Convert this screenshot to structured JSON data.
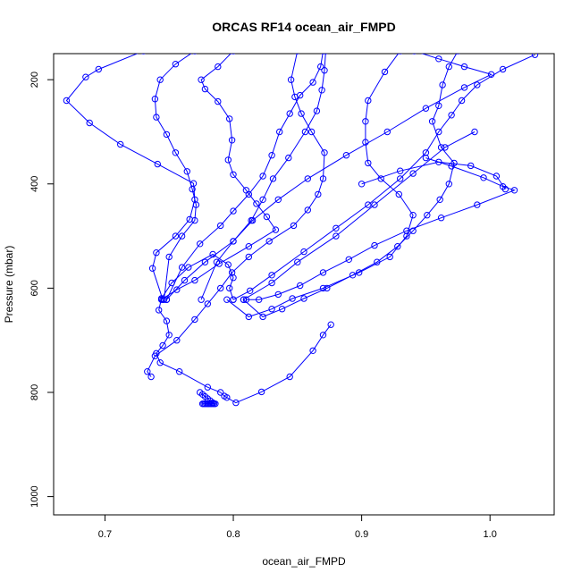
{
  "chart_data": {
    "type": "line",
    "title": "ORCAS RF14 ocean_air_FMPD",
    "xlabel": "ocean_air_FMPD",
    "ylabel": "Pressure (mbar)",
    "xlim": [
      0.66,
      1.05
    ],
    "ylim": [
      1035,
      150
    ],
    "xticks": [
      0.7,
      0.8,
      0.9,
      1.0
    ],
    "xtick_labels": [
      "0.7",
      "0.8",
      "0.9",
      "1.0"
    ],
    "yticks": [
      200,
      400,
      600,
      800,
      1000
    ],
    "ytick_labels": [
      "200",
      "400",
      "600",
      "800",
      "1000"
    ],
    "grid": false,
    "color": "#0000ff",
    "series": [
      {
        "x": [
          0.73,
          0.695,
          0.685,
          0.67,
          0.688,
          0.712,
          0.741,
          0.769,
          0.77,
          0.766,
          0.755,
          0.74,
          0.737,
          0.745
        ],
        "y": [
          145,
          180,
          195,
          240,
          283,
          324,
          362,
          399,
          430,
          468,
          500,
          532,
          562,
          622
        ]
      },
      {
        "x": [
          0.77,
          0.755,
          0.743,
          0.739,
          0.74,
          0.748,
          0.755,
          0.764,
          0.768,
          0.771,
          0.77,
          0.76,
          0.75,
          0.746
        ],
        "y": [
          145,
          170,
          200,
          237,
          272,
          305,
          340,
          376,
          410,
          440,
          470,
          500,
          540,
          622
        ]
      },
      {
        "x": [
          0.8,
          0.788,
          0.775,
          0.778,
          0.788,
          0.797,
          0.799,
          0.796,
          0.8,
          0.81,
          0.818,
          0.826,
          0.833,
          0.812,
          0.789,
          0.77,
          0.756,
          0.744
        ],
        "y": [
          145,
          175,
          200,
          218,
          242,
          275,
          316,
          354,
          382,
          412,
          438,
          463,
          488,
          520,
          553,
          585,
          603,
          622
        ]
      },
      {
        "x": [
          0.8,
          0.797,
          0.8,
          0.796,
          0.784,
          0.765,
          0.752,
          0.744,
          0.742,
          0.748,
          0.75,
          0.745,
          0.74,
          0.743,
          0.758,
          0.78,
          0.79,
          0.793,
          0.795,
          0.802,
          0.822,
          0.844,
          0.862,
          0.87,
          0.876
        ],
        "y": [
          622,
          600,
          580,
          555,
          535,
          560,
          590,
          620,
          642,
          663,
          690,
          710,
          725,
          743,
          760,
          790,
          800,
          807,
          810,
          820,
          799,
          770,
          720,
          690,
          670
        ]
      },
      {
        "x": [
          0.776,
          0.777,
          0.778,
          0.779,
          0.78,
          0.781,
          0.782,
          0.783,
          0.784,
          0.785,
          0.786,
          0.784,
          0.782,
          0.78,
          0.778,
          0.776,
          0.774
        ],
        "y": [
          822,
          822,
          822,
          822,
          822,
          822,
          822,
          822,
          822,
          822,
          822,
          820,
          816,
          812,
          808,
          804,
          800
        ]
      },
      {
        "x": [
          0.872,
          0.871,
          0.869,
          0.865,
          0.856,
          0.843,
          0.831,
          0.823,
          0.814,
          0.8,
          0.778,
          0.762,
          0.748
        ],
        "y": [
          145,
          182,
          220,
          260,
          300,
          350,
          390,
          430,
          470,
          510,
          550,
          585,
          622
        ]
      },
      {
        "x": [
          0.87,
          0.868,
          0.862,
          0.852,
          0.844,
          0.836,
          0.83,
          0.823,
          0.812,
          0.8,
          0.79,
          0.774,
          0.76,
          0.748
        ],
        "y": [
          145,
          175,
          205,
          230,
          265,
          300,
          345,
          385,
          420,
          452,
          480,
          515,
          560,
          622
        ]
      },
      {
        "x": [
          0.85,
          0.845,
          0.848,
          0.853,
          0.861,
          0.871,
          0.87,
          0.866,
          0.858,
          0.847,
          0.828,
          0.812,
          0.799,
          0.79,
          0.78,
          0.77,
          0.756,
          0.739,
          0.733,
          0.736
        ],
        "y": [
          145,
          200,
          233,
          265,
          300,
          340,
          390,
          420,
          450,
          480,
          510,
          540,
          570,
          600,
          630,
          660,
          700,
          730,
          760,
          770
        ]
      },
      {
        "x": [
          0.93,
          0.918,
          0.905,
          0.903,
          0.903,
          0.905,
          0.915,
          0.929,
          0.94,
          0.935,
          0.922,
          0.898,
          0.87,
          0.846,
          0.83,
          0.812,
          0.795
        ],
        "y": [
          145,
          185,
          240,
          280,
          320,
          360,
          390,
          420,
          460,
          500,
          540,
          570,
          600,
          620,
          640,
          655,
          622
        ]
      },
      {
        "x": [
          0.975,
          0.968,
          0.963,
          0.96,
          0.955,
          0.962,
          0.972,
          0.968,
          0.961,
          0.951,
          0.94,
          0.928,
          0.912,
          0.893,
          0.873,
          0.855,
          0.838,
          0.823,
          0.808
        ],
        "y": [
          145,
          175,
          210,
          250,
          280,
          330,
          360,
          400,
          430,
          460,
          490,
          520,
          550,
          575,
          600,
          620,
          640,
          655,
          622
        ]
      },
      {
        "x": [
          1.035,
          1.01,
          0.99,
          0.978,
          0.97,
          0.96,
          0.95,
          0.93,
          0.905,
          0.88,
          0.855,
          0.83,
          0.813,
          0.8
        ],
        "y": [
          152,
          180,
          210,
          240,
          268,
          300,
          340,
          390,
          440,
          485,
          530,
          575,
          605,
          622
        ]
      },
      {
        "x": [
          0.95,
          0.97,
          0.995,
          1.01,
          1.019,
          0.99,
          0.962,
          0.935,
          0.91,
          0.89,
          0.87,
          0.852,
          0.835,
          0.82,
          0.81
        ],
        "y": [
          350,
          366,
          388,
          405,
          412,
          440,
          465,
          490,
          518,
          545,
          570,
          595,
          612,
          622,
          622
        ]
      },
      {
        "x": [
          0.9,
          0.93,
          0.96,
          0.985,
          1.005,
          1.012
        ],
        "y": [
          400,
          375,
          358,
          365,
          385,
          410
        ]
      },
      {
        "x": [
          0.941,
          0.96,
          0.98,
          1.001,
          0.98,
          0.95,
          0.92,
          0.888,
          0.858,
          0.835,
          0.815,
          0.8,
          0.787,
          0.775
        ],
        "y": [
          145,
          160,
          175,
          190,
          215,
          255,
          300,
          345,
          390,
          430,
          470,
          510,
          550,
          622
        ]
      },
      {
        "x": [
          0.988,
          0.965,
          0.94,
          0.91,
          0.88,
          0.85,
          0.83,
          0.808
        ],
        "y": [
          300,
          330,
          380,
          440,
          500,
          550,
          590,
          622
        ]
      }
    ]
  }
}
